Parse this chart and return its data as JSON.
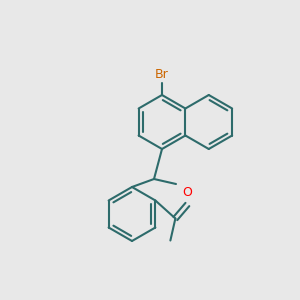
{
  "bg_color": "#e8e8e8",
  "bond_color": "#2d6b6b",
  "bond_width": 1.5,
  "br_color": "#cc6600",
  "o_color": "#ff0000",
  "text_color": "#1a1a1a",
  "font_size": 9,
  "br_font_size": 9,
  "o_font_size": 9
}
